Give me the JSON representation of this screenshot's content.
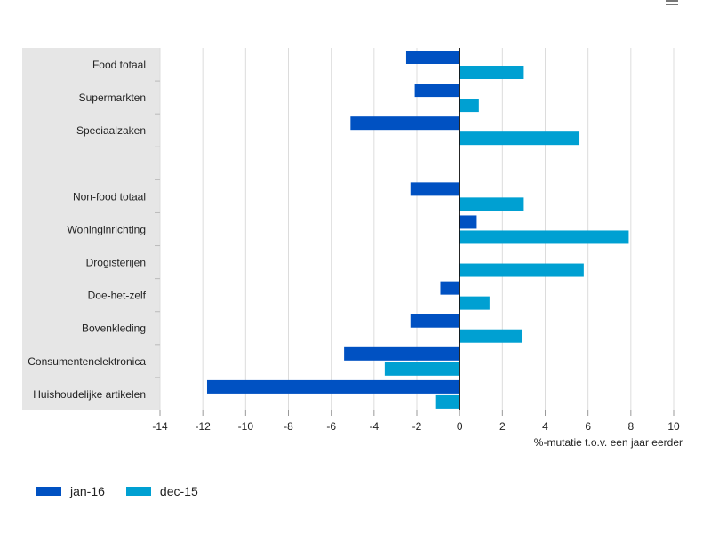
{
  "chart_data": {
    "type": "bar",
    "orientation": "horizontal",
    "categories": [
      "Food totaal",
      "Supermarkten",
      "Speciaalzaken",
      "",
      "Non-food totaal",
      "Woninginrichting",
      "Drogisterijen",
      "Doe-het-zelf",
      "Bovenkleding",
      "Consumentenelektronica",
      "Huishoudelijke artikelen"
    ],
    "series": [
      {
        "name": "jan-16",
        "color": "#0051c2",
        "values": [
          -2.5,
          -2.1,
          -5.1,
          null,
          -2.3,
          0.8,
          null,
          -0.9,
          -2.3,
          -5.4,
          -11.8
        ]
      },
      {
        "name": "dec-15",
        "color": "#00a0d2",
        "values": [
          3.0,
          0.9,
          5.6,
          null,
          3.0,
          7.9,
          5.8,
          1.4,
          2.9,
          -3.5,
          -1.1
        ]
      }
    ],
    "xlim": [
      -14,
      10
    ],
    "xticks": [
      -14,
      -12,
      -10,
      -8,
      -6,
      -4,
      -2,
      0,
      2,
      4,
      6,
      8,
      10
    ],
    "xlabel": "%-mutatie t.o.v. een jaar eerder",
    "ylabel": "",
    "grid": "vertical",
    "legend_position": "bottom-left"
  }
}
